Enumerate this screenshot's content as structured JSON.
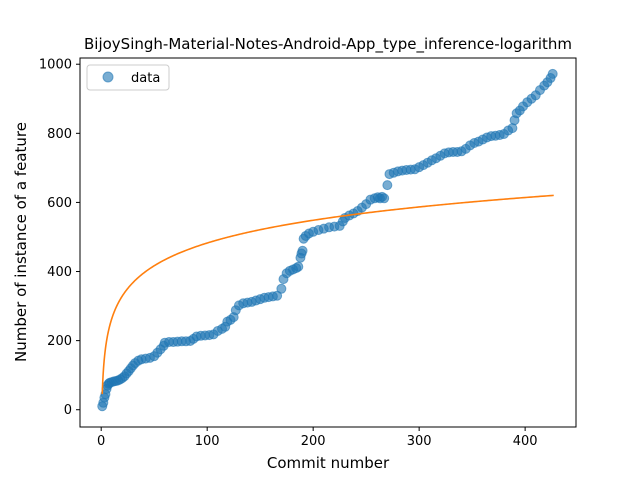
{
  "chart_data": {
    "type": "scatter",
    "title": "BijoySingh-Material-Notes-Android-App_type_inference-logarithm",
    "xlabel": "Commit number",
    "ylabel": "Number of instance of a feature",
    "xlim": [
      -20,
      448
    ],
    "ylim": [
      -50,
      1018
    ],
    "xticks": [
      0,
      100,
      200,
      300,
      400
    ],
    "yticks": [
      0,
      200,
      400,
      600,
      800,
      1000
    ],
    "grid": false,
    "legend_position": "top-left",
    "colors": {
      "scatter": "#1f77b4",
      "fit": "#ff7f0e"
    },
    "series": [
      {
        "name": "data",
        "kind": "scatter",
        "points": [
          [
            1,
            10
          ],
          [
            2,
            20
          ],
          [
            3,
            35
          ],
          [
            4,
            45
          ],
          [
            5,
            60
          ],
          [
            6,
            70
          ],
          [
            7,
            75
          ],
          [
            8,
            78
          ],
          [
            10,
            80
          ],
          [
            12,
            82
          ],
          [
            14,
            83
          ],
          [
            16,
            85
          ],
          [
            18,
            88
          ],
          [
            20,
            92
          ],
          [
            22,
            97
          ],
          [
            24,
            105
          ],
          [
            26,
            112
          ],
          [
            28,
            120
          ],
          [
            30,
            128
          ],
          [
            32,
            135
          ],
          [
            35,
            142
          ],
          [
            38,
            146
          ],
          [
            42,
            148
          ],
          [
            46,
            150
          ],
          [
            50,
            155
          ],
          [
            53,
            165
          ],
          [
            56,
            175
          ],
          [
            59,
            185
          ],
          [
            60,
            194
          ],
          [
            64,
            196
          ],
          [
            68,
            196
          ],
          [
            72,
            197
          ],
          [
            76,
            198
          ],
          [
            80,
            198
          ],
          [
            84,
            199
          ],
          [
            87,
            205
          ],
          [
            90,
            212
          ],
          [
            94,
            214
          ],
          [
            98,
            215
          ],
          [
            102,
            216
          ],
          [
            106,
            218
          ],
          [
            110,
            228
          ],
          [
            114,
            234
          ],
          [
            117,
            240
          ],
          [
            119,
            255
          ],
          [
            122,
            260
          ],
          [
            125,
            268
          ],
          [
            127,
            288
          ],
          [
            130,
            302
          ],
          [
            134,
            308
          ],
          [
            138,
            310
          ],
          [
            142,
            312
          ],
          [
            146,
            316
          ],
          [
            150,
            320
          ],
          [
            154,
            324
          ],
          [
            158,
            326
          ],
          [
            162,
            328
          ],
          [
            166,
            330
          ],
          [
            170,
            350
          ],
          [
            172,
            378
          ],
          [
            175,
            395
          ],
          [
            178,
            402
          ],
          [
            181,
            406
          ],
          [
            184,
            410
          ],
          [
            186,
            414
          ],
          [
            188,
            440
          ],
          [
            189,
            452
          ],
          [
            190,
            460
          ],
          [
            191,
            495
          ],
          [
            193,
            503
          ],
          [
            196,
            510
          ],
          [
            200,
            515
          ],
          [
            205,
            520
          ],
          [
            210,
            524
          ],
          [
            215,
            528
          ],
          [
            220,
            530
          ],
          [
            225,
            532
          ],
          [
            228,
            545
          ],
          [
            230,
            555
          ],
          [
            234,
            562
          ],
          [
            238,
            568
          ],
          [
            242,
            575
          ],
          [
            246,
            585
          ],
          [
            250,
            595
          ],
          [
            254,
            608
          ],
          [
            258,
            612
          ],
          [
            261,
            615
          ],
          [
            263,
            612
          ],
          [
            265,
            616
          ],
          [
            267,
            612
          ],
          [
            270,
            650
          ],
          [
            272,
            682
          ],
          [
            276,
            686
          ],
          [
            280,
            690
          ],
          [
            284,
            692
          ],
          [
            288,
            694
          ],
          [
            292,
            695
          ],
          [
            296,
            696
          ],
          [
            300,
            702
          ],
          [
            304,
            708
          ],
          [
            308,
            715
          ],
          [
            312,
            722
          ],
          [
            316,
            728
          ],
          [
            320,
            735
          ],
          [
            324,
            742
          ],
          [
            328,
            745
          ],
          [
            332,
            746
          ],
          [
            336,
            746
          ],
          [
            340,
            748
          ],
          [
            344,
            755
          ],
          [
            348,
            765
          ],
          [
            352,
            772
          ],
          [
            356,
            776
          ],
          [
            360,
            782
          ],
          [
            364,
            788
          ],
          [
            368,
            792
          ],
          [
            372,
            793
          ],
          [
            376,
            795
          ],
          [
            380,
            798
          ],
          [
            384,
            808
          ],
          [
            388,
            815
          ],
          [
            390,
            838
          ],
          [
            392,
            858
          ],
          [
            395,
            866
          ],
          [
            398,
            878
          ],
          [
            402,
            890
          ],
          [
            406,
            900
          ],
          [
            410,
            910
          ],
          [
            414,
            925
          ],
          [
            418,
            938
          ],
          [
            421,
            948
          ],
          [
            424,
            960
          ],
          [
            426,
            972
          ]
        ]
      },
      {
        "name": "",
        "kind": "line",
        "fit": {
          "function": "a*ln(x)+b",
          "a": 95,
          "b": 45,
          "x_start": 1,
          "x_end": 427
        }
      }
    ]
  }
}
